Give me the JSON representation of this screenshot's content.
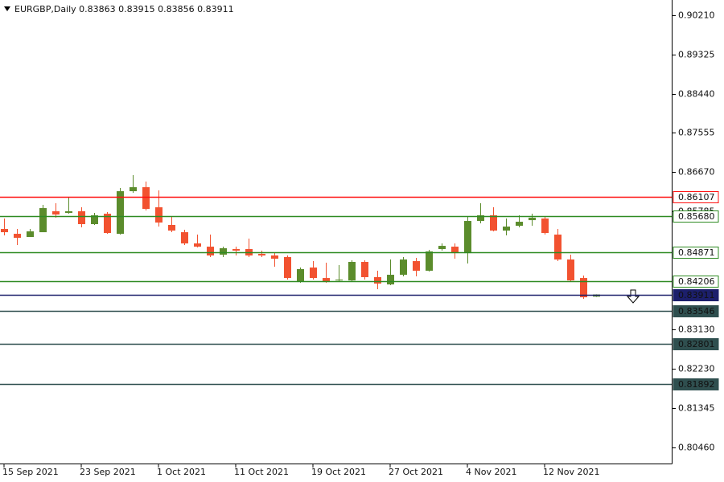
{
  "chart_data": {
    "type": "candlestick",
    "title": "EURGBP,Daily  0.83863 0.83915 0.83856 0.83911",
    "categories": [
      "15 Sep 2021",
      null,
      null,
      null,
      null,
      null,
      "23 Sep 2021",
      null,
      null,
      null,
      null,
      null,
      "1 Oct 2021",
      null,
      null,
      null,
      null,
      null,
      "11 Oct 2021",
      null,
      null,
      null,
      null,
      null,
      "19 Oct 2021",
      null,
      null,
      null,
      null,
      null,
      "27 Oct 2021",
      null,
      null,
      null,
      null,
      null,
      "4 Nov 2021",
      null,
      null,
      null,
      null,
      null,
      "12 Nov 2021",
      null,
      null,
      null,
      null
    ],
    "open": [
      0.85389,
      0.8528,
      0.85208,
      0.85316,
      0.85788,
      0.85751,
      0.85788,
      0.85498,
      0.85733,
      0.8528,
      0.86241,
      0.86331,
      0.85878,
      0.8548,
      0.85316,
      0.85063,
      0.8499,
      0.84809,
      0.84936,
      0.84936,
      0.84827,
      0.84791,
      0.84755,
      0.84211,
      0.84519,
      0.84283,
      0.84229,
      0.84229,
      0.84646,
      0.84302,
      0.84138,
      0.84356,
      0.84664,
      0.84447,
      0.84936,
      0.8499,
      0.84845,
      0.8557,
      0.85697,
      0.85353,
      0.85461,
      0.85588,
      0.85625,
      0.85262,
      0.847,
      0.84283,
      0.83863
    ],
    "high": [
      0.85625,
      0.85389,
      0.85389,
      0.85933,
      0.85969,
      0.86096,
      0.85878,
      0.85751,
      0.8577,
      0.86313,
      0.86603,
      0.86458,
      0.86259,
      0.85661,
      0.85371,
      0.85262,
      0.85262,
      0.8499,
      0.8499,
      0.85171,
      0.849,
      0.84863,
      0.84791,
      0.84519,
      0.84664,
      0.84628,
      0.84573,
      0.84682,
      0.84682,
      0.84447,
      0.847,
      0.84755,
      0.84737,
      0.84918,
      0.85063,
      0.85063,
      0.85661,
      0.85969,
      0.85878,
      0.85625,
      0.85697,
      0.85733,
      0.85679,
      0.85389,
      0.84809,
      0.84338,
      0.83915
    ],
    "low": [
      0.85244,
      0.85026,
      0.85208,
      0.85316,
      0.85643,
      0.85733,
      0.85425,
      0.8548,
      0.8528,
      0.85262,
      0.86204,
      0.85806,
      0.85443,
      0.85316,
      0.85026,
      0.84972,
      0.84755,
      0.84755,
      0.84791,
      0.84755,
      0.84755,
      0.84537,
      0.84247,
      0.84175,
      0.84247,
      0.84175,
      0.84211,
      0.84211,
      0.84247,
      0.8403,
      0.8412,
      0.8432,
      0.8432,
      0.84428,
      0.849,
      0.84718,
      0.8461,
      0.85516,
      0.85335,
      0.85244,
      0.85425,
      0.85461,
      0.85262,
      0.84664,
      0.84193,
      0.83812,
      0.83856
    ],
    "close": [
      0.85316,
      0.8519,
      0.85335,
      0.8586,
      0.85715,
      0.85788,
      0.85498,
      0.85697,
      0.85298,
      0.86241,
      0.86331,
      0.85842,
      0.85534,
      0.85353,
      0.85063,
      0.8499,
      0.84791,
      0.84954,
      0.849,
      0.84791,
      0.84791,
      0.84718,
      0.84283,
      0.84483,
      0.84283,
      0.84193,
      0.84247,
      0.84646,
      0.84302,
      0.84157,
      0.84356,
      0.847,
      0.84447,
      0.84882,
      0.85008,
      0.84845,
      0.8557,
      0.85697,
      0.85353,
      0.85443,
      0.85552,
      0.85643,
      0.85298,
      0.847,
      0.84229,
      0.83848,
      0.83911
    ],
    "up_color": "#5b8c2c",
    "down_color": "#f25230",
    "ylim": [
      0.80098,
      0.90554
    ],
    "yticks": [
      {
        "value": 0.9021,
        "label": "0.90210"
      },
      {
        "value": 0.89325,
        "label": "0.89325"
      },
      {
        "value": 0.8844,
        "label": "0.88440"
      },
      {
        "value": 0.87555,
        "label": "0.87555"
      },
      {
        "value": 0.8667,
        "label": "0.86670"
      },
      {
        "value": 0.85785,
        "label": "0.85785"
      },
      {
        "value": 0.8313,
        "label": "0.83130"
      },
      {
        "value": 0.8223,
        "label": "0.82230"
      },
      {
        "value": 0.81345,
        "label": "0.81345"
      },
      {
        "value": 0.8046,
        "label": "0.80460"
      }
    ],
    "levels": [
      {
        "value": 0.86107,
        "label": "0.86107",
        "color": "#ff1010",
        "filled": false
      },
      {
        "value": 0.8568,
        "label": "0.85680",
        "color": "#2e8b22",
        "filled": false
      },
      {
        "value": 0.84871,
        "label": "0.84871",
        "color": "#2e8b22",
        "filled": false
      },
      {
        "value": 0.84206,
        "label": "0.84206",
        "color": "#2e8b22",
        "filled": false
      },
      {
        "value": 0.83911,
        "label": "0.83911",
        "color": "#1c1f6b",
        "filled": true
      },
      {
        "value": 0.83546,
        "label": "0.83546",
        "color": "#2f4f4f",
        "filled": true
      },
      {
        "value": 0.82801,
        "label": "0.82801",
        "color": "#2f4f4f",
        "filled": true
      },
      {
        "value": 0.81892,
        "label": "0.81892",
        "color": "#2f4f4f",
        "filled": true
      }
    ]
  }
}
